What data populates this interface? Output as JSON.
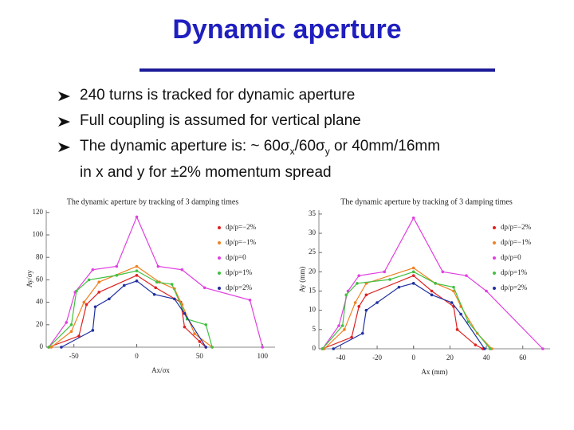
{
  "title": "Dynamic aperture",
  "bullets": [
    "240 turns is tracked for dynamic aperture",
    "Full coupling is assumed for vertical plane",
    [
      "The dynamic aperture is: ~ 60σ",
      "x",
      "/60σ",
      "y",
      " or 40mm/16mm",
      "in x and y for ±2% momentum spread"
    ]
  ],
  "chart_data": [
    {
      "type": "line",
      "title": "The dynamic aperture by tracking of 3 damping times",
      "x_label": "Ax/σx",
      "y_label": "Ay/σy",
      "legend": "upper right",
      "xlim": [
        -72,
        110
      ],
      "ylim": [
        0,
        122
      ],
      "xticks": [
        -50,
        0,
        50,
        100
      ],
      "yticks": [
        0,
        20,
        40,
        60,
        80,
        100,
        120
      ],
      "series": [
        {
          "name": "dp/p=−2%",
          "color": "#e02020",
          "x": [
            -70,
            -46,
            -40,
            -30,
            0,
            15,
            35,
            38,
            50,
            55
          ],
          "values": [
            0,
            10,
            38,
            49,
            64,
            53,
            40,
            18,
            5,
            0
          ]
        },
        {
          "name": "dp/p=−1%",
          "color": "#f08020",
          "x": [
            -68,
            -52,
            -42,
            -30,
            0,
            18,
            30,
            36,
            46,
            60
          ],
          "values": [
            0,
            14,
            40,
            58,
            72,
            58,
            52,
            38,
            12,
            0
          ]
        },
        {
          "name": "dp/p=0",
          "color": "#e040e0",
          "x": [
            -70,
            -56,
            -49,
            -35,
            -16,
            0,
            17,
            36,
            54,
            90,
            100
          ],
          "values": [
            0,
            22,
            49,
            69,
            72,
            116,
            72,
            69,
            53,
            42,
            0
          ]
        },
        {
          "name": "dp/p=1%",
          "color": "#40c040",
          "x": [
            -70,
            -52,
            -48,
            -38,
            -16,
            0,
            16,
            28,
            40,
            55,
            60
          ],
          "values": [
            0,
            20,
            50,
            60,
            64,
            68,
            58,
            56,
            25,
            20,
            0
          ]
        },
        {
          "name": "dp/p=2%",
          "color": "#2030a0",
          "x": [
            -60,
            -35,
            -33,
            -22,
            -10,
            0,
            14,
            30,
            38,
            55
          ],
          "values": [
            0,
            15,
            36,
            43,
            55,
            59,
            47,
            43,
            30,
            0
          ]
        }
      ]
    },
    {
      "type": "line",
      "title": "The dynamic aperture by tracking of 3 damping times",
      "x_label": "Ax (mm)",
      "y_label": "Ay (mm)",
      "legend": "upper right",
      "xlim": [
        -52,
        75
      ],
      "ylim": [
        0,
        36
      ],
      "xticks": [
        -40,
        -20,
        0,
        20,
        40,
        60
      ],
      "yticks": [
        0,
        5,
        10,
        15,
        20,
        25,
        30,
        35
      ],
      "series": [
        {
          "name": "dp/p=−2%",
          "color": "#e02020",
          "x": [
            -50,
            -34,
            -30,
            -26,
            0,
            10,
            22,
            24,
            34,
            38
          ],
          "values": [
            0,
            3,
            11,
            14,
            19,
            15,
            11,
            5,
            1,
            0
          ]
        },
        {
          "name": "dp/p=−1%",
          "color": "#f08020",
          "x": [
            -49,
            -38,
            -32,
            -26,
            0,
            12,
            22,
            26,
            35,
            43
          ],
          "values": [
            0,
            5,
            12,
            17,
            21,
            17,
            15,
            11,
            4,
            0
          ]
        },
        {
          "name": "dp/p=0",
          "color": "#e040e0",
          "x": [
            -50,
            -41,
            -36,
            -30,
            -16,
            0,
            16,
            29,
            40,
            71
          ],
          "values": [
            0,
            6,
            15,
            19,
            20,
            34,
            20,
            19,
            15,
            0
          ]
        },
        {
          "name": "dp/p=1%",
          "color": "#40c040",
          "x": [
            -50,
            -39,
            -37,
            -31,
            -13,
            0,
            12,
            22,
            30,
            42
          ],
          "values": [
            0,
            6,
            14,
            17,
            18,
            20,
            17,
            16,
            7,
            0
          ]
        },
        {
          "name": "dp/p=2%",
          "color": "#2030a0",
          "x": [
            -44,
            -28,
            -26,
            -20,
            -8,
            0,
            10,
            21,
            26,
            39
          ],
          "values": [
            0,
            4,
            10,
            12,
            16,
            17,
            14,
            12,
            9,
            0
          ]
        }
      ]
    }
  ]
}
